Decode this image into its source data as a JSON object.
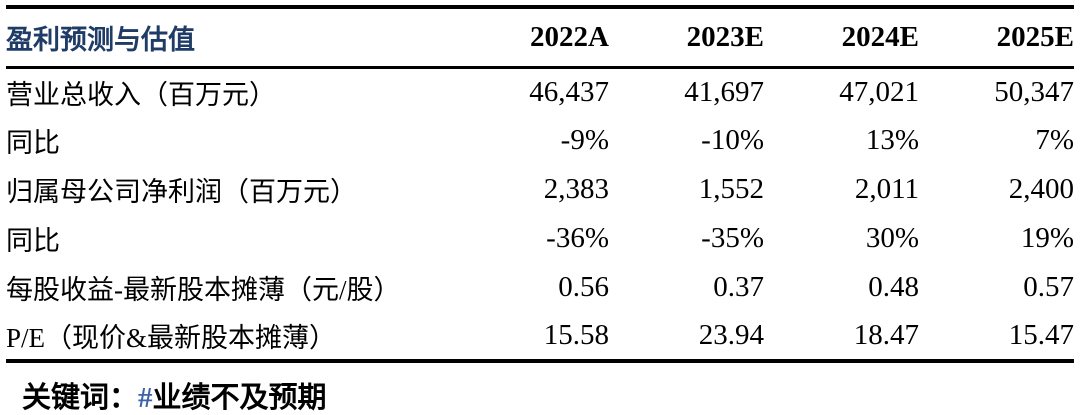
{
  "colors": {
    "title_text": "#1f3c66",
    "body_text": "#000000",
    "hashtag_symbol_color": "#3f62ad",
    "border": "#000000",
    "background": "#ffffff"
  },
  "table": {
    "title": "盈利预测与估值",
    "columns": [
      "2022A",
      "2023E",
      "2024E",
      "2025E"
    ],
    "rows": [
      {
        "label": "营业总收入（百万元）",
        "values": [
          "46,437",
          "41,697",
          "47,021",
          "50,347"
        ]
      },
      {
        "label": "同比",
        "values": [
          "-9%",
          "-10%",
          "13%",
          "7%"
        ]
      },
      {
        "label": "归属母公司净利润（百万元）",
        "values": [
          "2,383",
          "1,552",
          "2,011",
          "2,400"
        ]
      },
      {
        "label": "同比",
        "values": [
          "-36%",
          "-35%",
          "30%",
          "19%"
        ]
      },
      {
        "label": "每股收益-最新股本摊薄（元/股）",
        "values": [
          "0.56",
          "0.37",
          "0.48",
          "0.57"
        ]
      },
      {
        "label": "P/E（现价&最新股本摊薄）",
        "values": [
          "15.58",
          "23.94",
          "18.47",
          "15.47"
        ]
      }
    ]
  },
  "footer": {
    "keyword_label": "关键词：",
    "hashtag_symbol": "#",
    "keyword_text": "业绩不及预期"
  }
}
